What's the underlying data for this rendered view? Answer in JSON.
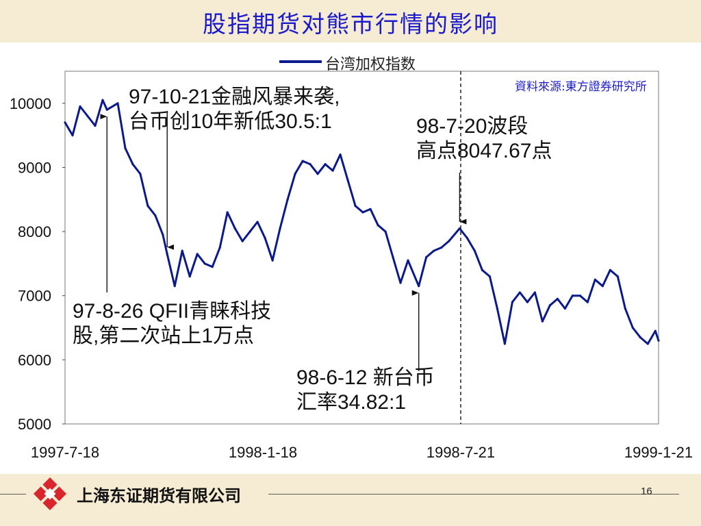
{
  "slide": {
    "title": "股指期货对熊市行情的影响",
    "source": "資料來源:東方證券研究所",
    "page_number": "16",
    "company": "上海东证期货有限公司"
  },
  "annotations": {
    "a1_line1": "97-10-21金融风暴来袭,",
    "a1_line2": "台币创10年新低30.5:1",
    "a2_line1": "98-7-20波段",
    "a2_line2": "高点8047.67点",
    "a3_line1": "97-8-26 QFII青睐科技",
    "a3_line2": "股,第二次站上1万点",
    "a4_line1": "98-6-12 新台币",
    "a4_line2": "汇率34.82:1"
  },
  "chart_data": {
    "type": "line",
    "series": [
      {
        "name": "台湾加权指数",
        "x": [
          "1997-7-18",
          "1997-7-25",
          "1997-8-1",
          "1997-8-8",
          "1997-8-15",
          "1997-8-22",
          "1997-8-26",
          "1997-9-5",
          "1997-9-12",
          "1997-9-19",
          "1997-9-26",
          "1997-10-3",
          "1997-10-10",
          "1997-10-17",
          "1997-10-21",
          "1997-10-28",
          "1997-11-4",
          "1997-11-11",
          "1997-11-18",
          "1997-11-25",
          "1997-12-2",
          "1997-12-9",
          "1997-12-16",
          "1997-12-23",
          "1997-12-30",
          "1998-1-6",
          "1998-1-13",
          "1998-1-20",
          "1998-1-27",
          "1998-2-3",
          "1998-2-10",
          "1998-2-17",
          "1998-2-24",
          "1998-3-3",
          "1998-3-10",
          "1998-3-17",
          "1998-3-24",
          "1998-3-31",
          "1998-4-7",
          "1998-4-14",
          "1998-4-21",
          "1998-4-28",
          "1998-5-5",
          "1998-5-12",
          "1998-5-19",
          "1998-5-26",
          "1998-6-2",
          "1998-6-12",
          "1998-6-19",
          "1998-6-26",
          "1998-7-3",
          "1998-7-10",
          "1998-7-20",
          "1998-7-27",
          "1998-8-3",
          "1998-8-10",
          "1998-8-17",
          "1998-8-24",
          "1998-8-31",
          "1998-9-7",
          "1998-9-14",
          "1998-9-21",
          "1998-9-28",
          "1998-10-5",
          "1998-10-12",
          "1998-10-19",
          "1998-10-26",
          "1998-11-2",
          "1998-11-9",
          "1998-11-16",
          "1998-11-23",
          "1998-11-30",
          "1998-12-7",
          "1998-12-14",
          "1998-12-21",
          "1998-12-28",
          "1999-1-4",
          "1999-1-11",
          "1999-1-18",
          "1999-1-21"
        ],
        "values": [
          9700,
          9500,
          9950,
          9800,
          9650,
          10050,
          9900,
          10000,
          9300,
          9050,
          8900,
          8400,
          8250,
          7950,
          7650,
          7150,
          7700,
          7300,
          7650,
          7500,
          7450,
          7750,
          8300,
          8050,
          7850,
          8000,
          8150,
          7900,
          7550,
          8050,
          8500,
          8900,
          9100,
          9050,
          8900,
          9050,
          8950,
          9200,
          8800,
          8400,
          8300,
          8350,
          8100,
          8000,
          7600,
          7200,
          7550,
          7150,
          7600,
          7700,
          7750,
          7850,
          8047.67,
          7900,
          7700,
          7400,
          7300,
          6800,
          6250,
          6900,
          7050,
          6900,
          7050,
          6600,
          6850,
          6950,
          6800,
          7000,
          7000,
          6900,
          7250,
          7150,
          7400,
          7300,
          6800,
          6500,
          6350,
          6250,
          6450,
          6300
        ]
      }
    ],
    "xticks": [
      "1997-7-18",
      "1998-1-18",
      "1998-7-21",
      "1999-1-21"
    ],
    "yticks": [
      5000,
      6000,
      7000,
      8000,
      9000,
      10000
    ],
    "ylim": [
      5000,
      10500
    ],
    "xlim": [
      "1997-7-18",
      "1999-1-21"
    ],
    "legend": "top-center",
    "grid": false,
    "reference_line": "1998-7-21",
    "colors": {
      "series": "#0a1a8c",
      "title": "#1a1acc",
      "source": "#1c1cc8"
    }
  }
}
